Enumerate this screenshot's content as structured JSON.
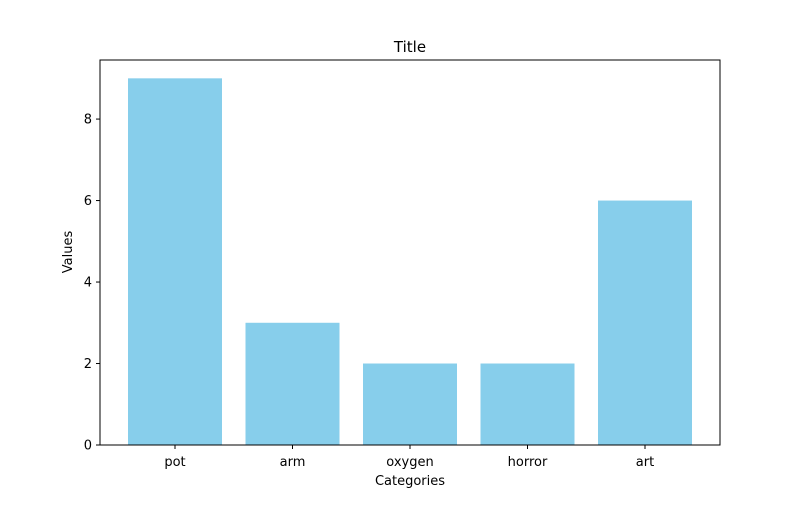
{
  "chart_data": {
    "type": "bar",
    "title": "Title",
    "xlabel": "Categories",
    "ylabel": "Values",
    "categories": [
      "pot",
      "arm",
      "oxygen",
      "horror",
      "art"
    ],
    "values": [
      9,
      3,
      2,
      2,
      6
    ],
    "ylim": [
      0,
      9.45
    ],
    "yticks": [
      0,
      2,
      4,
      6,
      8
    ],
    "grid": false,
    "bar_color": "#87CEEB"
  }
}
